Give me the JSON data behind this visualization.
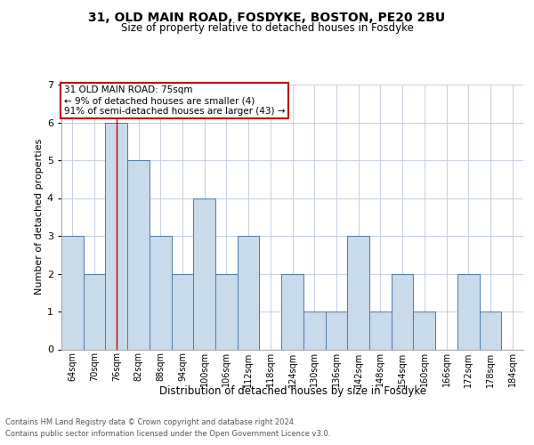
{
  "title1": "31, OLD MAIN ROAD, FOSDYKE, BOSTON, PE20 2BU",
  "title2": "Size of property relative to detached houses in Fosdyke",
  "xlabel": "Distribution of detached houses by size in Fosdyke",
  "ylabel": "Number of detached properties",
  "categories": [
    "64sqm",
    "70sqm",
    "76sqm",
    "82sqm",
    "88sqm",
    "94sqm",
    "100sqm",
    "106sqm",
    "112sqm",
    "118sqm",
    "124sqm",
    "130sqm",
    "136sqm",
    "142sqm",
    "148sqm",
    "154sqm",
    "160sqm",
    "166sqm",
    "172sqm",
    "178sqm",
    "184sqm"
  ],
  "values": [
    3,
    2,
    6,
    5,
    3,
    2,
    4,
    2,
    3,
    0,
    2,
    1,
    1,
    3,
    1,
    2,
    1,
    0,
    2,
    1,
    0
  ],
  "bar_color": "#c9daea",
  "bar_edge_color": "#4a7aaa",
  "highlight_bar_index": 2,
  "highlight_line_color": "#c00000",
  "ylim": [
    0,
    7
  ],
  "yticks": [
    0,
    1,
    2,
    3,
    4,
    5,
    6,
    7
  ],
  "annotation_text": "31 OLD MAIN ROAD: 75sqm\n← 9% of detached houses are smaller (4)\n91% of semi-detached houses are larger (43) →",
  "annotation_box_color": "#ffffff",
  "annotation_box_edge": "#c00000",
  "footer1": "Contains HM Land Registry data © Crown copyright and database right 2024.",
  "footer2": "Contains public sector information licensed under the Open Government Licence v3.0.",
  "bg_color": "#ffffff",
  "grid_color": "#c5cfe0"
}
